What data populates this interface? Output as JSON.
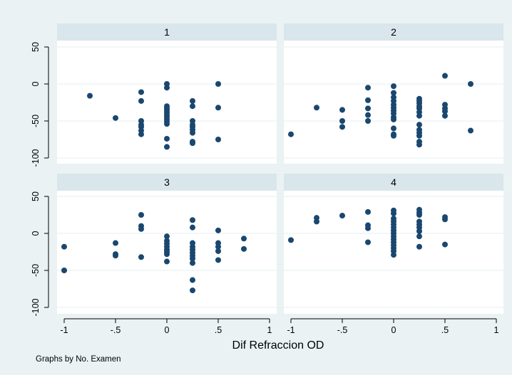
{
  "chart_data": {
    "type": "scatter",
    "xlabel": "Dif Refraccion OD",
    "ylabel": "",
    "note": "Graphs by No. Examen",
    "xlim": [
      -1,
      1
    ],
    "ylim": [
      -100,
      50
    ],
    "xticks": [
      -1,
      -0.5,
      0,
      0.5,
      1
    ],
    "xtick_labels": [
      "-1",
      "-.5",
      "0",
      ".5",
      "1"
    ],
    "yticks": [
      -100,
      -50,
      0,
      50
    ],
    "ytick_labels": [
      "-100",
      "-50",
      "0",
      "50"
    ],
    "grid": true,
    "marker_color": "#1a476f",
    "panels": [
      {
        "label": "1",
        "points": [
          [
            -0.75,
            -16
          ],
          [
            -0.5,
            -46
          ],
          [
            -0.25,
            -11
          ],
          [
            -0.25,
            -23
          ],
          [
            -0.25,
            -50
          ],
          [
            -0.25,
            -55
          ],
          [
            -0.25,
            -58
          ],
          [
            -0.25,
            -63
          ],
          [
            -0.25,
            -68
          ],
          [
            0,
            0
          ],
          [
            0,
            -5
          ],
          [
            0,
            -30
          ],
          [
            0,
            -33
          ],
          [
            0,
            -36
          ],
          [
            0,
            -39
          ],
          [
            0,
            -42
          ],
          [
            0,
            -45
          ],
          [
            0,
            -48
          ],
          [
            0,
            -51
          ],
          [
            0,
            -54
          ],
          [
            0,
            -74
          ],
          [
            0,
            -85
          ],
          [
            0.25,
            -23
          ],
          [
            0.25,
            -30
          ],
          [
            0.25,
            -50
          ],
          [
            0.25,
            -55
          ],
          [
            0.25,
            -58
          ],
          [
            0.25,
            -62
          ],
          [
            0.25,
            -66
          ],
          [
            0.25,
            -78
          ],
          [
            0.25,
            -80
          ],
          [
            0.5,
            0
          ],
          [
            0.5,
            -32
          ],
          [
            0.5,
            -75
          ]
        ]
      },
      {
        "label": "2",
        "points": [
          [
            -1,
            -68
          ],
          [
            -0.75,
            -32
          ],
          [
            -0.5,
            -35
          ],
          [
            -0.5,
            -50
          ],
          [
            -0.5,
            -58
          ],
          [
            -0.25,
            -5
          ],
          [
            -0.25,
            -22
          ],
          [
            -0.25,
            -33
          ],
          [
            -0.25,
            -42
          ],
          [
            -0.25,
            -50
          ],
          [
            0,
            -3
          ],
          [
            0,
            -12
          ],
          [
            0,
            -18
          ],
          [
            0,
            -23
          ],
          [
            0,
            -28
          ],
          [
            0,
            -32
          ],
          [
            0,
            -36
          ],
          [
            0,
            -40
          ],
          [
            0,
            -45
          ],
          [
            0,
            -48
          ],
          [
            0,
            -60
          ],
          [
            0,
            -68
          ],
          [
            0,
            -70
          ],
          [
            0.25,
            -20
          ],
          [
            0.25,
            -23
          ],
          [
            0.25,
            -26
          ],
          [
            0.25,
            -30
          ],
          [
            0.25,
            -33
          ],
          [
            0.25,
            -38
          ],
          [
            0.25,
            -43
          ],
          [
            0.25,
            -55
          ],
          [
            0.25,
            -62
          ],
          [
            0.25,
            -66
          ],
          [
            0.25,
            -70
          ],
          [
            0.25,
            -78
          ],
          [
            0.25,
            -82
          ],
          [
            0.5,
            11
          ],
          [
            0.5,
            -28
          ],
          [
            0.5,
            -33
          ],
          [
            0.5,
            -37
          ],
          [
            0.5,
            -43
          ],
          [
            0.75,
            0
          ],
          [
            0.75,
            -63
          ]
        ]
      },
      {
        "label": "3",
        "points": [
          [
            -1,
            -18
          ],
          [
            -1,
            -50
          ],
          [
            -0.5,
            -13
          ],
          [
            -0.5,
            -28
          ],
          [
            -0.5,
            -30
          ],
          [
            -0.25,
            25
          ],
          [
            -0.25,
            10
          ],
          [
            -0.25,
            6
          ],
          [
            -0.25,
            -32
          ],
          [
            0,
            -4
          ],
          [
            0,
            -10
          ],
          [
            0,
            -14
          ],
          [
            0,
            -18
          ],
          [
            0,
            -22
          ],
          [
            0,
            -25
          ],
          [
            0,
            -28
          ],
          [
            0,
            -38
          ],
          [
            0.25,
            18
          ],
          [
            0.25,
            8
          ],
          [
            0.25,
            -13
          ],
          [
            0.25,
            -18
          ],
          [
            0.25,
            -22
          ],
          [
            0.25,
            -26
          ],
          [
            0.25,
            -30
          ],
          [
            0.25,
            -34
          ],
          [
            0.25,
            -40
          ],
          [
            0.25,
            -63
          ],
          [
            0.25,
            -77
          ],
          [
            0.5,
            4
          ],
          [
            0.5,
            -13
          ],
          [
            0.5,
            -18
          ],
          [
            0.5,
            -24
          ],
          [
            0.5,
            -36
          ],
          [
            0.75,
            -7
          ],
          [
            0.75,
            -21
          ]
        ]
      },
      {
        "label": "4",
        "points": [
          [
            -1,
            -9
          ],
          [
            -0.75,
            21
          ],
          [
            -0.75,
            16
          ],
          [
            -0.5,
            24
          ],
          [
            -0.25,
            29
          ],
          [
            -0.25,
            11
          ],
          [
            -0.25,
            7
          ],
          [
            -0.25,
            -12
          ],
          [
            0,
            31
          ],
          [
            0,
            27
          ],
          [
            0,
            20
          ],
          [
            0,
            16
          ],
          [
            0,
            12
          ],
          [
            0,
            8
          ],
          [
            0,
            4
          ],
          [
            0,
            0
          ],
          [
            0,
            -4
          ],
          [
            0,
            -8
          ],
          [
            0,
            -12
          ],
          [
            0,
            -16
          ],
          [
            0,
            -20
          ],
          [
            0,
            -24
          ],
          [
            0,
            -29
          ],
          [
            0.25,
            32
          ],
          [
            0.25,
            28
          ],
          [
            0.25,
            25
          ],
          [
            0.25,
            16
          ],
          [
            0.25,
            12
          ],
          [
            0.25,
            8
          ],
          [
            0.25,
            3
          ],
          [
            0.25,
            -4
          ],
          [
            0.25,
            -18
          ],
          [
            0.5,
            22
          ],
          [
            0.5,
            19
          ],
          [
            0.5,
            -15
          ]
        ]
      }
    ]
  }
}
